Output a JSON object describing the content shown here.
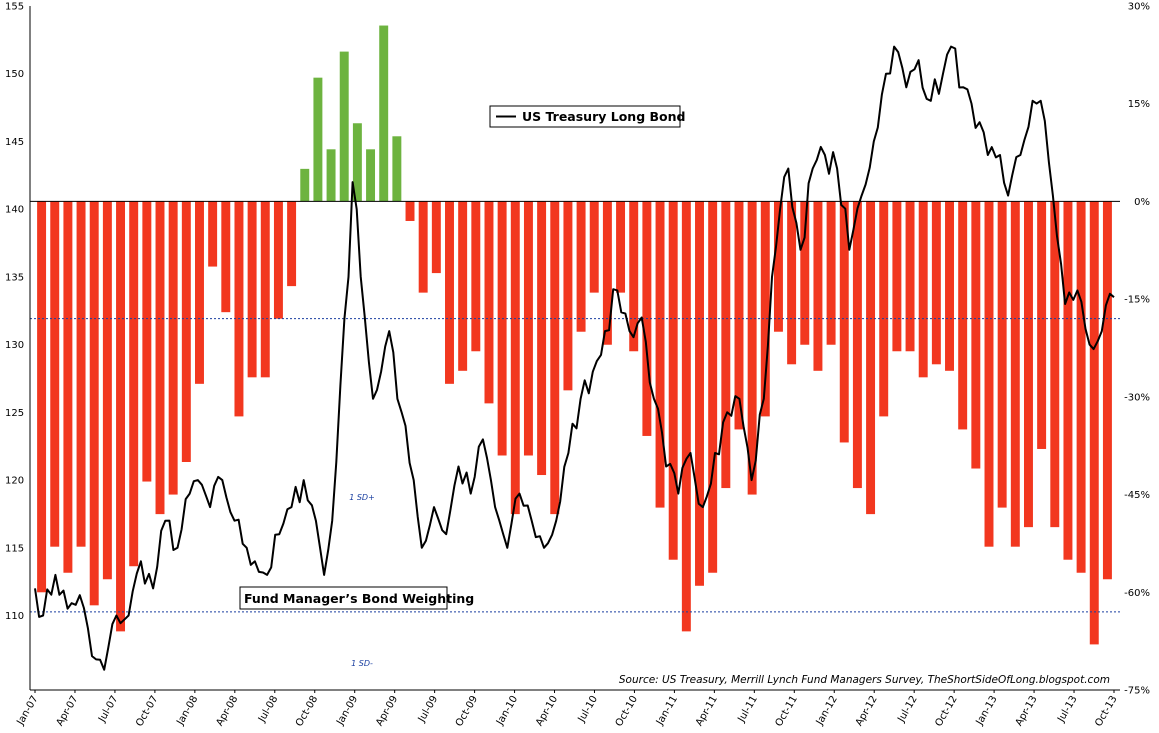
{
  "chart_data": {
    "type": "bar",
    "title": "",
    "annotations": {
      "legend_label": "US Treasury Long Bond",
      "bar_title": "Fund Manager’s Bond Weighting",
      "sd_upper_label": "1 SD+",
      "sd_lower_label": "1 SD-",
      "source": "Source: US Treasury, Merrill Lynch Fund Managers Survey, TheShortSideOfLong.blogspot.com"
    },
    "x_tick_labels": [
      "Jan-07",
      "Apr-07",
      "Jul-07",
      "Oct-07",
      "Jan-08",
      "Apr-08",
      "Jul-08",
      "Oct-08",
      "Jan-09",
      "Apr-09",
      "Jul-09",
      "Oct-09",
      "Jan-10",
      "Apr-10",
      "Jul-10",
      "Oct-10",
      "Jan-11",
      "Apr-11",
      "Jul-11",
      "Oct-11",
      "Jan-12",
      "Apr-12",
      "Jul-12",
      "Oct-12",
      "Jan-13",
      "Apr-13",
      "Jul-13",
      "Oct-13"
    ],
    "y_left": {
      "ticks": [
        "110",
        "115",
        "120",
        "125",
        "130",
        "135",
        "140",
        "145",
        "150",
        "155"
      ],
      "ylim": [
        104.5,
        155
      ],
      "label": ""
    },
    "y_right": {
      "ticks": [
        "30%",
        "15%",
        "0%",
        "-15%",
        "-30%",
        "-45%",
        "-60%",
        "-75%"
      ],
      "ylim": [
        -75,
        30
      ],
      "label": ""
    },
    "sd_levels": {
      "upper": -18,
      "lower": -63
    },
    "bond_anchors": [
      [
        0,
        112
      ],
      [
        2,
        110
      ],
      [
        5,
        113
      ],
      [
        8,
        110.5
      ],
      [
        11,
        111.5
      ],
      [
        14,
        107
      ],
      [
        17,
        106
      ],
      [
        20,
        110
      ],
      [
        23,
        110
      ],
      [
        26,
        114
      ],
      [
        29,
        112
      ],
      [
        32,
        117
      ],
      [
        35,
        115
      ],
      [
        38,
        119
      ],
      [
        40,
        120
      ],
      [
        43,
        118
      ],
      [
        46,
        120
      ],
      [
        49,
        117
      ],
      [
        52,
        115
      ],
      [
        54,
        114
      ],
      [
        57,
        113
      ],
      [
        60,
        116
      ],
      [
        63,
        118
      ],
      [
        66,
        120
      ],
      [
        69,
        117
      ],
      [
        71,
        113
      ],
      [
        73,
        117
      ],
      [
        75,
        127
      ],
      [
        77,
        135
      ],
      [
        78,
        142
      ],
      [
        79,
        140
      ],
      [
        81,
        132
      ],
      [
        83,
        126
      ],
      [
        85,
        128
      ],
      [
        87,
        131
      ],
      [
        89,
        126
      ],
      [
        91,
        124
      ],
      [
        93,
        120
      ],
      [
        95,
        115
      ],
      [
        98,
        118
      ],
      [
        101,
        116
      ],
      [
        104,
        121
      ],
      [
        107,
        119
      ],
      [
        110,
        123
      ],
      [
        113,
        118
      ],
      [
        116,
        115
      ],
      [
        119,
        119
      ],
      [
        122,
        117
      ],
      [
        125,
        115
      ],
      [
        128,
        117
      ],
      [
        131,
        122
      ],
      [
        134,
        126
      ],
      [
        137,
        128
      ],
      [
        140,
        131
      ],
      [
        143,
        134
      ],
      [
        146,
        131
      ],
      [
        149,
        132
      ],
      [
        152,
        126
      ],
      [
        155,
        121
      ],
      [
        158,
        119
      ],
      [
        161,
        122
      ],
      [
        164,
        118
      ],
      [
        167,
        122
      ],
      [
        170,
        125
      ],
      [
        173,
        126
      ],
      [
        176,
        120
      ],
      [
        179,
        126
      ],
      [
        181,
        135
      ],
      [
        183,
        140
      ],
      [
        185,
        143
      ],
      [
        188,
        137
      ],
      [
        191,
        143
      ],
      [
        194,
        144
      ],
      [
        197,
        143
      ],
      [
        200,
        137
      ],
      [
        203,
        141
      ],
      [
        206,
        145
      ],
      [
        209,
        150
      ],
      [
        211,
        152
      ],
      [
        214,
        149
      ],
      [
        217,
        151
      ],
      [
        220,
        148
      ],
      [
        223,
        150
      ],
      [
        225,
        152
      ],
      [
        228,
        149
      ],
      [
        231,
        146
      ],
      [
        234,
        144
      ],
      [
        237,
        144
      ],
      [
        239,
        141
      ],
      [
        242,
        144
      ],
      [
        245,
        148
      ],
      [
        247,
        148
      ],
      [
        250,
        141
      ],
      [
        253,
        133
      ],
      [
        256,
        134
      ],
      [
        259,
        130
      ],
      [
        262,
        131
      ],
      [
        265,
        133.5
      ]
    ],
    "bar_values": [
      -60,
      -53,
      -57,
      -53,
      -62,
      -58,
      -66,
      -56,
      -43,
      -48,
      -45,
      -40,
      -28,
      -10,
      -17,
      -33,
      -27,
      -27,
      -18,
      -13,
      5,
      19,
      8,
      23,
      12,
      8,
      27,
      10,
      -3,
      -14,
      -11,
      -28,
      -26,
      -23,
      -31,
      -39,
      -48,
      -39,
      -42,
      -48,
      -29,
      -20,
      -14,
      -22,
      -14,
      -23,
      -36,
      -47,
      -55,
      -66,
      -59,
      -57,
      -44,
      -35,
      -45,
      -33,
      -20,
      -25,
      -22,
      -26,
      -22,
      -37,
      -44,
      -48,
      -33,
      -23,
      -23,
      -27,
      -25,
      -26,
      -35,
      -41,
      -53,
      -47,
      -53,
      -50,
      -38,
      -50,
      -55,
      -57,
      -68,
      -58
    ]
  }
}
